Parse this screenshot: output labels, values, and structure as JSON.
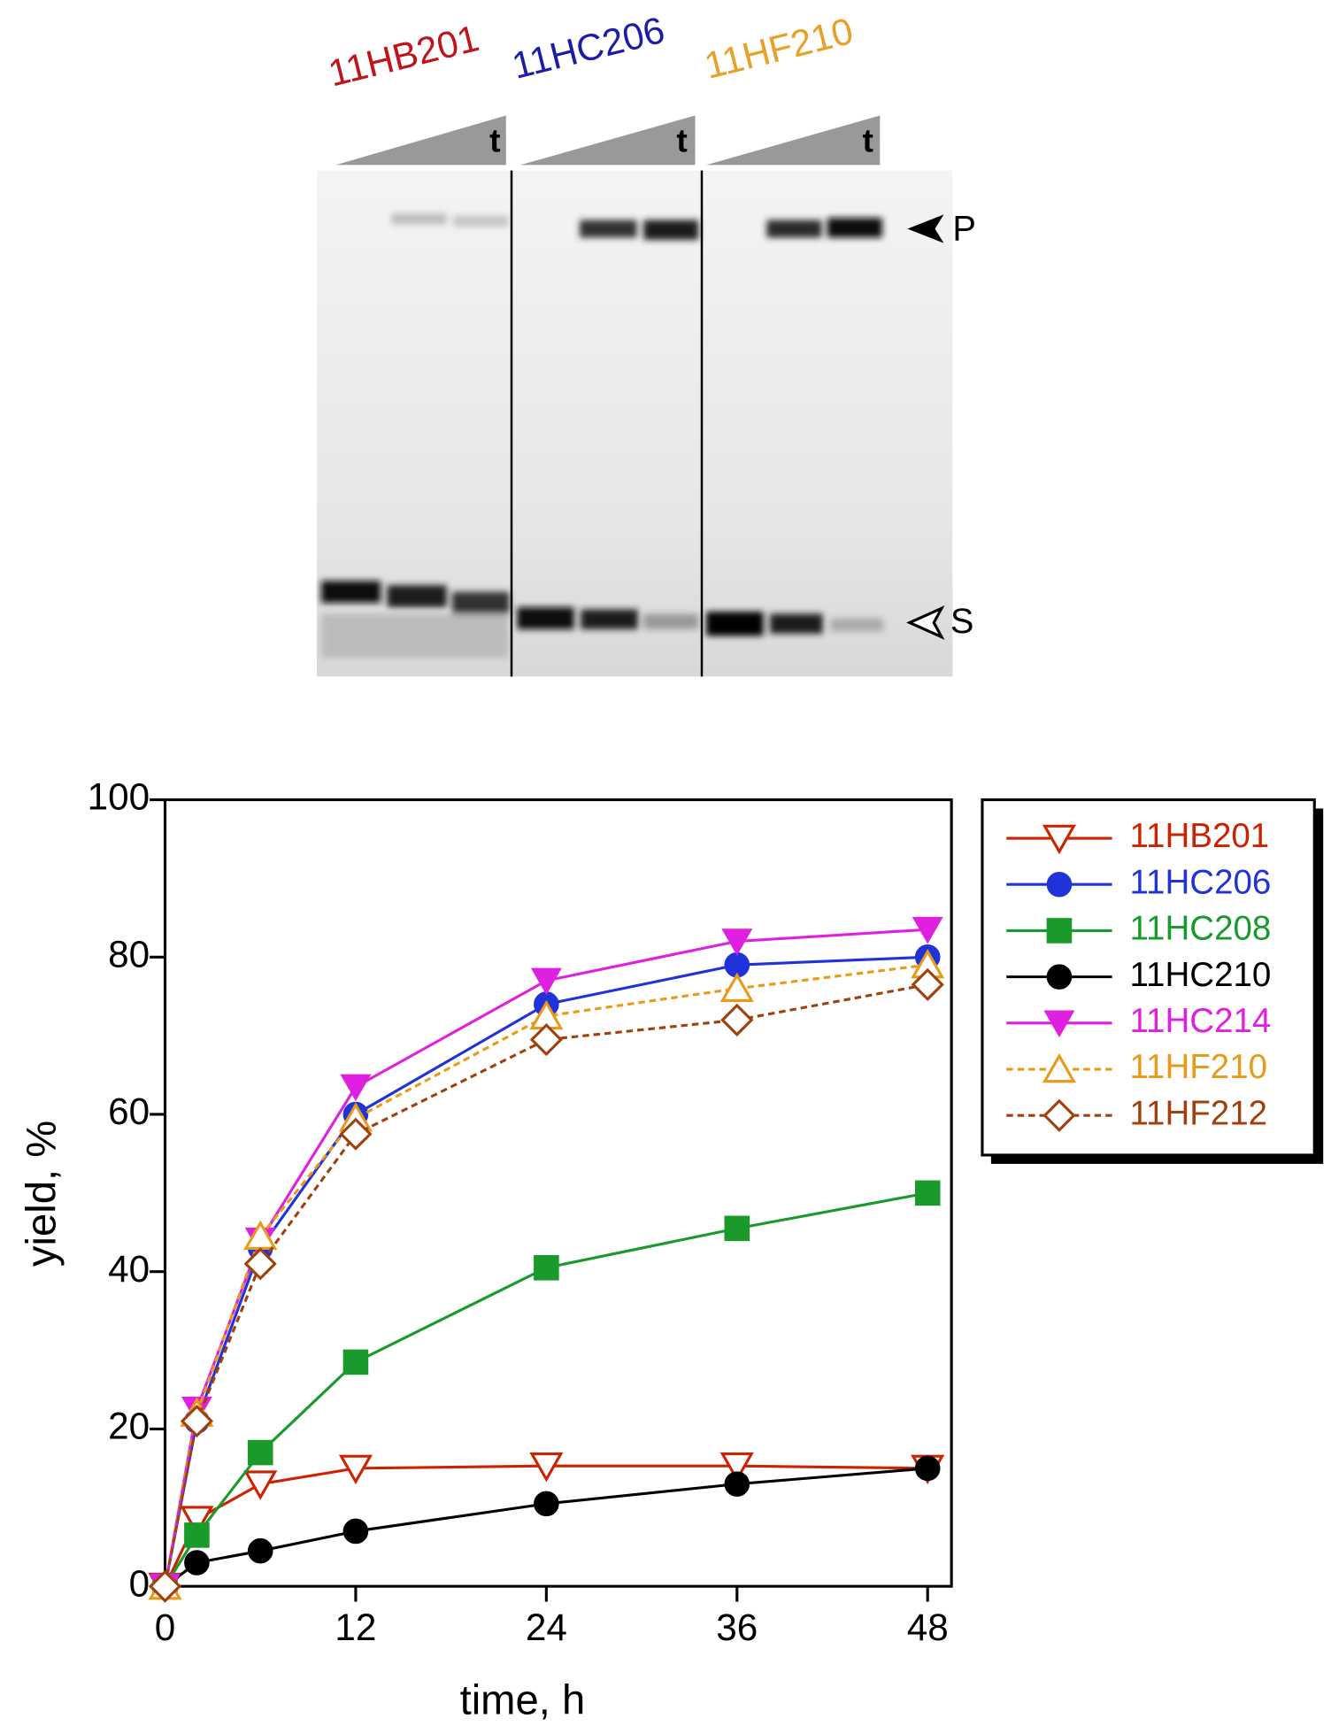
{
  "gel": {
    "lane_labels": [
      "11HB201",
      "11HC206",
      "11HF210"
    ],
    "lane_colors": [
      "#c0141c",
      "#1c1ca8",
      "#e8a028"
    ],
    "time_labels": [
      "t",
      "t",
      "t"
    ],
    "band_labels": [
      "P",
      "S"
    ]
  },
  "chart_data": {
    "type": "line",
    "xlabel": "time, h",
    "ylabel": "yield, %",
    "x": [
      0,
      2,
      6,
      12,
      24,
      36,
      48
    ],
    "xlim": [
      0,
      49.5
    ],
    "ylim": [
      0,
      100
    ],
    "xticks": [
      0,
      12,
      24,
      36,
      48
    ],
    "yticks": [
      0,
      20,
      40,
      60,
      80,
      100
    ],
    "legend": "right",
    "series": [
      {
        "name": "11HB201",
        "color": "#cc2200",
        "marker": "triangle-down-open",
        "dashed": false,
        "values": [
          0,
          8.5,
          13,
          15,
          15.3,
          15.3,
          15
        ]
      },
      {
        "name": "11HC206",
        "color": "#1f33d8",
        "marker": "circle",
        "dashed": false,
        "values": [
          0,
          21,
          43,
          60,
          74,
          79,
          80
        ]
      },
      {
        "name": "11HC208",
        "color": "#1a9a2a",
        "marker": "square",
        "dashed": false,
        "values": [
          0,
          6.5,
          17,
          28.5,
          40.5,
          45.5,
          50
        ]
      },
      {
        "name": "11HC210",
        "color": "#000000",
        "marker": "circle",
        "dashed": false,
        "values": [
          0,
          3,
          4.5,
          7,
          10.5,
          13,
          15
        ]
      },
      {
        "name": "11HC214",
        "color": "#e020e0",
        "marker": "triangle-down",
        "dashed": false,
        "values": [
          0,
          22.5,
          44,
          63.5,
          77,
          82,
          83.5
        ]
      },
      {
        "name": "11HF210",
        "color": "#e89a18",
        "marker": "triangle-up-open",
        "dashed": true,
        "values": [
          0,
          22,
          44.5,
          59.5,
          72.5,
          76,
          79
        ]
      },
      {
        "name": "11HF212",
        "color": "#a0400c",
        "marker": "diamond-open",
        "dashed": true,
        "values": [
          0,
          21,
          41,
          57.5,
          69.5,
          72,
          76.5
        ]
      }
    ]
  }
}
